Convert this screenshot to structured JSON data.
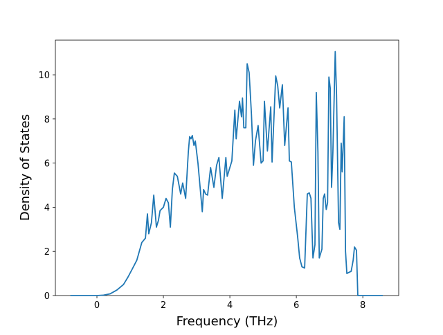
{
  "chart_data": {
    "type": "line",
    "xlabel": "Frequency (THz)",
    "ylabel": "Density of States",
    "color": "#1f77b4",
    "x": [
      -0.8,
      0,
      0.2,
      0.4,
      0.6,
      0.8,
      0.94,
      1.08,
      1.2,
      1.35,
      1.46,
      1.52,
      1.56,
      1.64,
      1.71,
      1.79,
      1.85,
      1.9,
      2.0,
      2.08,
      2.15,
      2.21,
      2.27,
      2.33,
      2.42,
      2.52,
      2.58,
      2.67,
      2.75,
      2.79,
      2.83,
      2.87,
      2.92,
      2.96,
      3.04,
      3.17,
      3.21,
      3.27,
      3.33,
      3.42,
      3.52,
      3.6,
      3.67,
      3.77,
      3.88,
      3.92,
      4.06,
      4.15,
      4.19,
      4.29,
      4.35,
      4.38,
      4.42,
      4.48,
      4.52,
      4.58,
      4.65,
      4.71,
      4.77,
      4.85,
      4.94,
      5.0,
      5.04,
      5.13,
      5.23,
      5.27,
      5.38,
      5.44,
      5.5,
      5.58,
      5.65,
      5.75,
      5.79,
      5.85,
      5.94,
      6.04,
      6.1,
      6.17,
      6.25,
      6.33,
      6.39,
      6.44,
      6.5,
      6.56,
      6.6,
      6.65,
      6.69,
      6.77,
      6.81,
      6.85,
      6.9,
      6.94,
      6.98,
      7.02,
      7.06,
      7.1,
      7.17,
      7.21,
      7.27,
      7.31,
      7.35,
      7.38,
      7.44,
      7.48,
      7.52,
      7.65,
      7.71,
      7.75,
      7.81,
      7.85,
      8.6
    ],
    "values": [
      0,
      0,
      0.02,
      0.08,
      0.25,
      0.5,
      0.85,
      1.25,
      1.6,
      2.4,
      2.6,
      3.7,
      2.8,
      3.3,
      4.55,
      3.1,
      3.4,
      3.85,
      4.0,
      4.4,
      4.2,
      3.1,
      4.8,
      5.55,
      5.4,
      4.6,
      5.1,
      4.4,
      6.5,
      7.2,
      7.1,
      7.25,
      6.8,
      7.0,
      6.0,
      3.8,
      4.8,
      4.6,
      4.55,
      5.8,
      4.9,
      5.9,
      6.25,
      4.4,
      6.25,
      5.4,
      6.1,
      8.4,
      7.1,
      8.8,
      8.1,
      8.95,
      7.6,
      7.6,
      10.5,
      10.1,
      8.2,
      5.9,
      7.0,
      7.7,
      6.0,
      6.1,
      8.8,
      6.55,
      8.55,
      6.05,
      9.95,
      9.5,
      8.5,
      9.55,
      6.8,
      8.5,
      6.1,
      6.05,
      4.0,
      2.65,
      1.7,
      1.3,
      1.25,
      4.6,
      4.65,
      4.4,
      1.7,
      2.3,
      9.2,
      6.5,
      1.7,
      2.1,
      4.4,
      4.6,
      3.9,
      4.2,
      9.9,
      9.4,
      4.9,
      6.5,
      11.05,
      9.1,
      3.3,
      3.0,
      6.9,
      5.6,
      8.1,
      2.0,
      1.0,
      1.1,
      1.6,
      2.2,
      2.05,
      0,
      0
    ],
    "xlim": [
      -1.25,
      9.08
    ],
    "ylim": [
      0,
      11.57
    ],
    "xticks": [
      0,
      2,
      4,
      6,
      8
    ],
    "yticks": [
      0,
      2,
      4,
      6,
      8,
      10
    ]
  }
}
